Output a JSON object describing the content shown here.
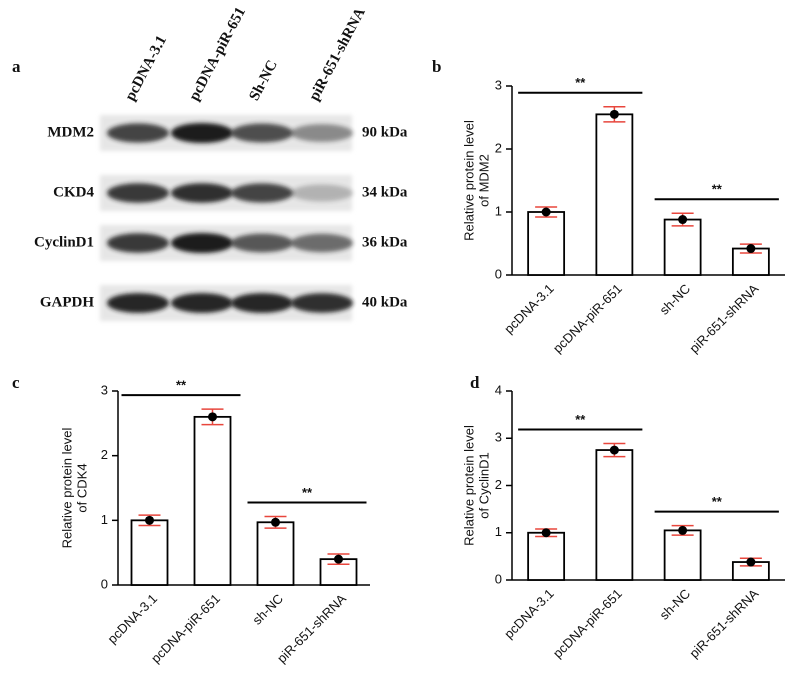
{
  "blot": {
    "panel": "a",
    "lanes": [
      "pcDNA-3.1",
      "pcDNA-piR-651",
      "Sh-NC",
      "piR-651-shRNA"
    ],
    "rows": [
      {
        "protein": "MDM2",
        "size": "90 kDa"
      },
      {
        "protein": "CKD4",
        "size": "34 kDa"
      },
      {
        "protein": "CyclinD1",
        "size": "36 kDa"
      },
      {
        "protein": "GAPDH",
        "size": "40 kDa"
      }
    ]
  },
  "chart_data": [
    {
      "type": "bar",
      "panel": "b",
      "ylabel": [
        "Relative protein level",
        "of MDM2"
      ],
      "categories": [
        "pcDNA-3.1",
        "pcDNA-piR-651",
        "sh-NC",
        "piR-651-shRNA"
      ],
      "values": [
        1.0,
        2.55,
        0.88,
        0.42
      ],
      "errors": [
        0.08,
        0.12,
        0.1,
        0.07
      ],
      "ylim": [
        0,
        3
      ],
      "yticks": [
        0,
        1,
        2,
        3
      ],
      "annotations": [
        "**",
        "**"
      ],
      "color": "#ffffff",
      "error_color": "#e8463c"
    },
    {
      "type": "bar",
      "panel": "c",
      "ylabel": [
        "Relative protein level",
        "of CDK4"
      ],
      "categories": [
        "pcDNA-3.1",
        "pcDNA-piR-651",
        "sh-NC",
        "piR-651-shRNA"
      ],
      "values": [
        1.0,
        2.6,
        0.97,
        0.4
      ],
      "errors": [
        0.08,
        0.12,
        0.09,
        0.08
      ],
      "ylim": [
        0,
        3
      ],
      "yticks": [
        0,
        1,
        2,
        3
      ],
      "annotations": [
        "**",
        "**"
      ],
      "color": "#ffffff",
      "error_color": "#e8463c"
    },
    {
      "type": "bar",
      "panel": "d",
      "ylabel": [
        "Relative protein level",
        "of CyclinD1"
      ],
      "categories": [
        "pcDNA-3.1",
        "pcDNA-piR-651",
        "sh-NC",
        "piR-651-shRNA"
      ],
      "values": [
        1.0,
        2.75,
        1.05,
        0.38
      ],
      "errors": [
        0.08,
        0.14,
        0.1,
        0.08
      ],
      "ylim": [
        0,
        4
      ],
      "yticks": [
        0,
        1,
        2,
        3,
        4
      ],
      "annotations": [
        "**",
        "**"
      ],
      "color": "#ffffff",
      "error_color": "#e8463c"
    }
  ]
}
